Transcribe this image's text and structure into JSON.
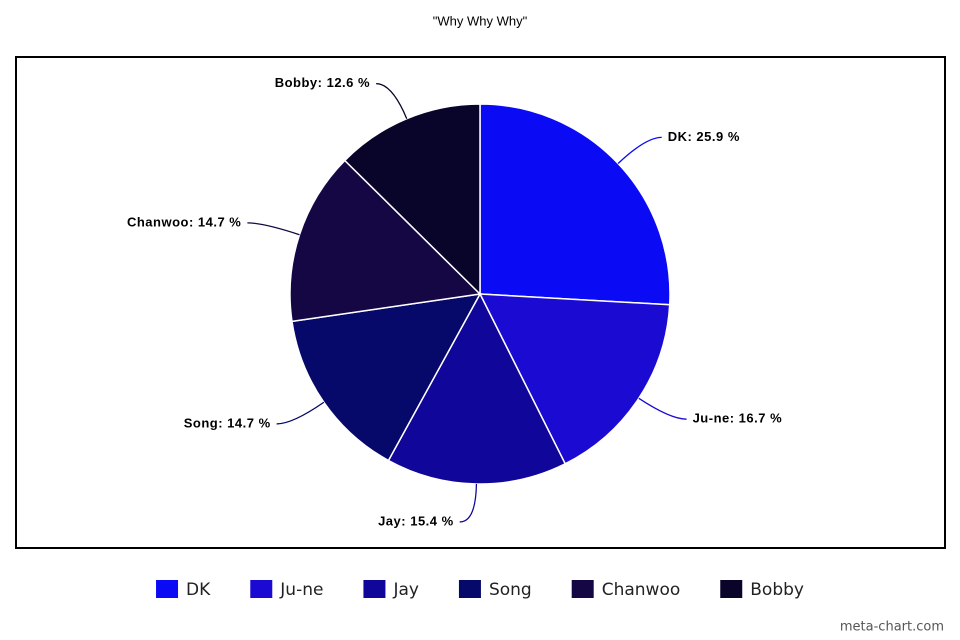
{
  "chart_data": {
    "type": "pie",
    "title": "\"Why Why Why\"",
    "categories": [
      "DK",
      "Ju-ne",
      "Jay",
      "Song",
      "Chanwoo",
      "Bobby"
    ],
    "values": [
      25.9,
      16.7,
      15.4,
      14.7,
      14.7,
      12.6
    ],
    "value_labels": [
      "DK: 25.9 %",
      "Ju-ne: 16.7 %",
      "Jay: 15.4 %",
      "Song: 14.7 %",
      "Chanwoo: 14.7 %",
      "Bobby: 12.6 %"
    ],
    "colors": [
      "#0a0af5",
      "#1a0ad2",
      "#10069a",
      "#06086a",
      "#140744",
      "#08042a"
    ],
    "legend": "bottom",
    "watermark": "meta-chart.com"
  }
}
